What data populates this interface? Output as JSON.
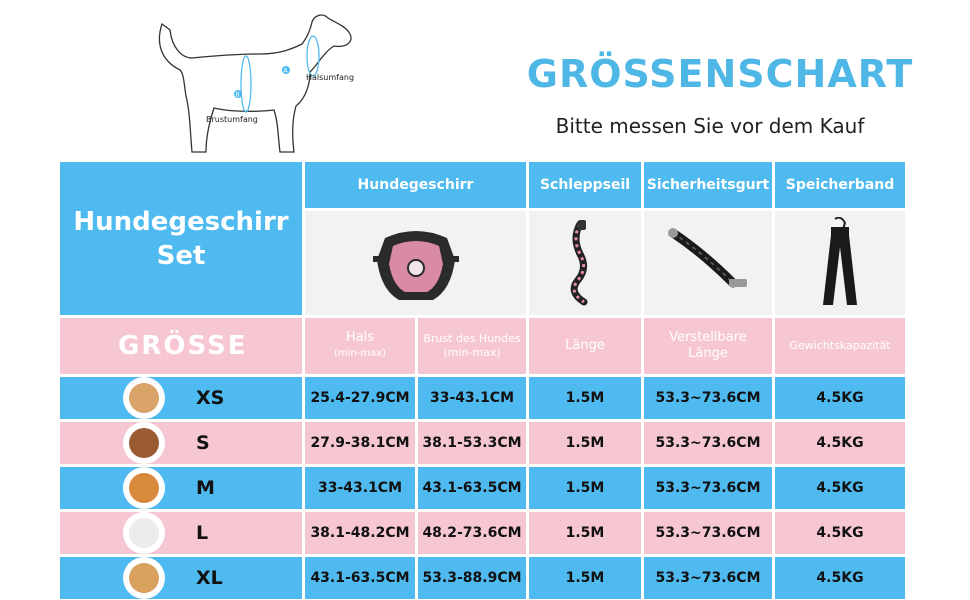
{
  "diagram": {
    "neck_label": "Halsumfang",
    "chest_label": "Brustumfang",
    "marker_a": "A",
    "marker_b": "B"
  },
  "header": {
    "title": "GRÖSSENSCHART",
    "subtitle": "Bitte messen Sie vor dem Kauf"
  },
  "table": {
    "set_label_line1": "Hundegeschirr",
    "set_label_line2": "Set",
    "products": {
      "harness": "Hundegeschirr",
      "leash": "Schleppseil",
      "seatbelt": "Sicherheitsgurt",
      "storage": "Speicherband"
    },
    "size_header": "GRÖSSE",
    "columns": {
      "neck": "Hals",
      "neck_range": "(min-max)",
      "chest": "Brust des Hundes",
      "chest_range": "(min-max)",
      "length": "Länge",
      "adjustable_line1": "Verstellbare",
      "adjustable_line2": "Länge",
      "weight_capacity": "Gewichtskapazität"
    },
    "rows": [
      {
        "size": "XS",
        "neck": "25.4-27.9CM",
        "chest": "33-43.1CM",
        "length": "1.5M",
        "adjustable": "53.3~73.6CM",
        "capacity": "4.5KG",
        "dog_color": "#d9a36a"
      },
      {
        "size": "S",
        "neck": "27.9-38.1CM",
        "chest": "38.1-53.3CM",
        "length": "1.5M",
        "adjustable": "53.3~73.6CM",
        "capacity": "4.5KG",
        "dog_color": "#9a5a32"
      },
      {
        "size": "M",
        "neck": "33-43.1CM",
        "chest": "43.1-63.5CM",
        "length": "1.5M",
        "adjustable": "53.3~73.6CM",
        "capacity": "4.5KG",
        "dog_color": "#d88a3a"
      },
      {
        "size": "L",
        "neck": "38.1-48.2CM",
        "chest": "48.2-73.6CM",
        "length": "1.5M",
        "adjustable": "53.3~73.6CM",
        "capacity": "4.5KG",
        "dog_color": "#ececec"
      },
      {
        "size": "XL",
        "neck": "43.1-63.5CM",
        "chest": "53.3-88.9CM",
        "length": "1.5M",
        "adjustable": "53.3~73.6CM",
        "capacity": "4.5KG",
        "dog_color": "#d8a25e"
      }
    ]
  },
  "colors": {
    "blue": "#4fbaf0",
    "pink": "#f6c7d2",
    "title": "#4fb7e6"
  }
}
